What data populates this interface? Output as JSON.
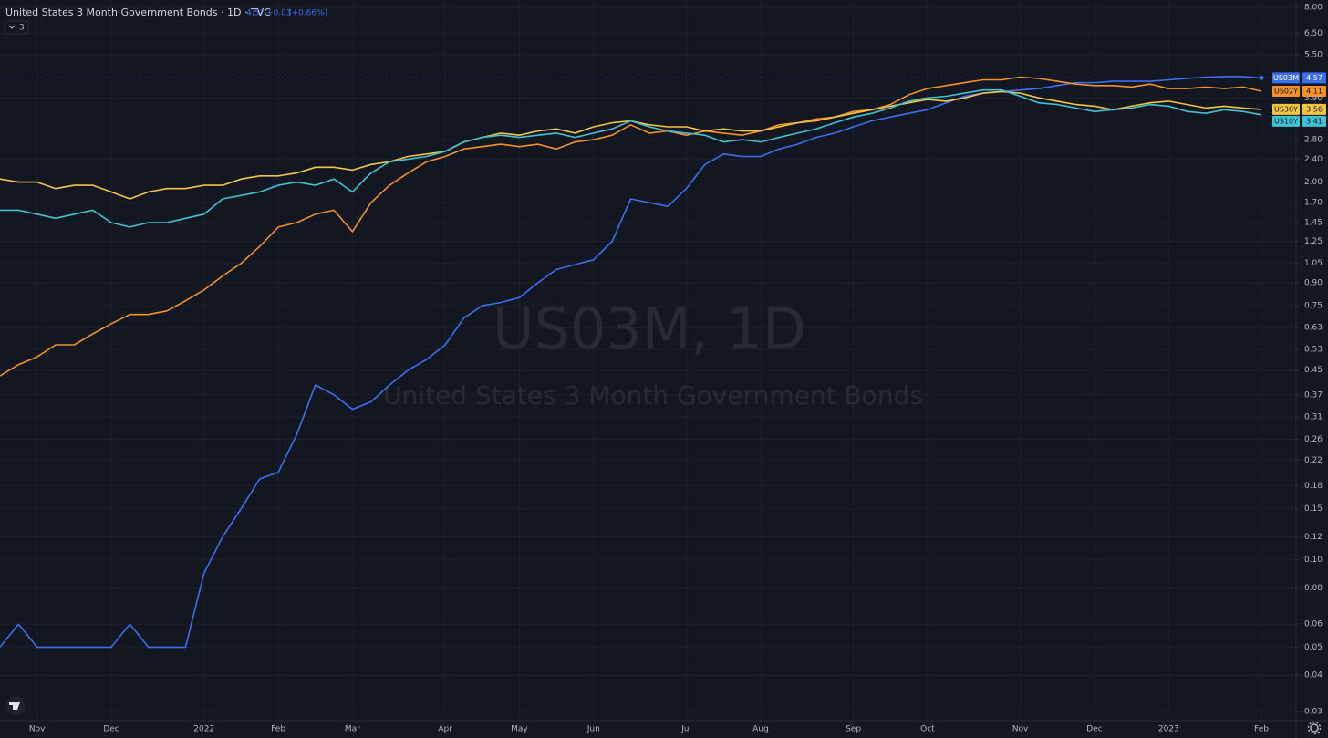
{
  "header": {
    "title": "United States 3 Month Government Bonds · 1D · TVC",
    "price": "4.57",
    "change": "+0.03",
    "change_pct": "(+0.66%)",
    "indicators": "3"
  },
  "watermark": {
    "symbol": "US03M, 1D",
    "description": "United States 3 Month Government Bonds"
  },
  "chart_data": {
    "type": "line",
    "log_scale": true,
    "grid": true,
    "categories": [
      null,
      null,
      "Nov",
      null,
      null,
      null,
      "Dec",
      null,
      null,
      null,
      null,
      "2022",
      null,
      null,
      null,
      "Feb",
      null,
      null,
      null,
      "Mar",
      null,
      null,
      null,
      null,
      "Apr",
      null,
      null,
      null,
      "May",
      null,
      null,
      null,
      "Jun",
      null,
      null,
      null,
      null,
      "Jul",
      null,
      null,
      null,
      "Aug",
      null,
      null,
      null,
      null,
      "Sep",
      null,
      null,
      null,
      "Oct",
      null,
      null,
      null,
      null,
      "Nov",
      null,
      null,
      null,
      "Dec",
      null,
      null,
      null,
      "2023",
      null,
      null,
      null,
      null,
      "Feb"
    ],
    "series": [
      {
        "name": "US03M",
        "color": "#3a6ff0",
        "values": [
          0.05,
          0.06,
          0.05,
          0.05,
          0.05,
          0.05,
          0.05,
          0.06,
          0.05,
          0.05,
          0.05,
          0.09,
          0.12,
          0.15,
          0.19,
          0.2,
          0.27,
          0.4,
          0.37,
          0.33,
          0.35,
          0.4,
          0.45,
          0.49,
          0.55,
          0.68,
          0.75,
          0.77,
          0.8,
          0.9,
          1.0,
          1.04,
          1.08,
          1.25,
          1.75,
          1.7,
          1.65,
          1.9,
          2.3,
          2.5,
          2.45,
          2.45,
          2.6,
          2.7,
          2.85,
          2.95,
          3.1,
          3.25,
          3.35,
          3.45,
          3.55,
          3.75,
          3.95,
          4.05,
          4.1,
          4.15,
          4.2,
          4.3,
          4.4,
          4.4,
          4.45,
          4.45,
          4.45,
          4.5,
          4.55,
          4.6,
          4.62,
          4.62,
          4.57
        ]
      },
      {
        "name": "US02Y",
        "color": "#f5902a",
        "values": [
          0.43,
          0.47,
          0.5,
          0.55,
          0.55,
          0.6,
          0.65,
          0.7,
          0.7,
          0.72,
          0.78,
          0.85,
          0.95,
          1.05,
          1.2,
          1.4,
          1.45,
          1.55,
          1.6,
          1.35,
          1.7,
          1.95,
          2.15,
          2.35,
          2.45,
          2.6,
          2.65,
          2.7,
          2.65,
          2.7,
          2.6,
          2.75,
          2.8,
          2.9,
          3.15,
          2.95,
          3.0,
          2.9,
          3.0,
          2.95,
          2.9,
          3.0,
          3.15,
          3.2,
          3.3,
          3.35,
          3.5,
          3.55,
          3.7,
          4.0,
          4.2,
          4.3,
          4.4,
          4.5,
          4.5,
          4.6,
          4.55,
          4.45,
          4.35,
          4.3,
          4.3,
          4.25,
          4.35,
          4.2,
          4.2,
          4.25,
          4.2,
          4.25,
          4.11
        ]
      },
      {
        "name": "US30Y",
        "color": "#f4c542",
        "values": [
          2.05,
          2.0,
          2.0,
          1.9,
          1.95,
          1.95,
          1.85,
          1.75,
          1.85,
          1.9,
          1.9,
          1.95,
          1.95,
          2.05,
          2.1,
          2.1,
          2.15,
          2.25,
          2.25,
          2.2,
          2.3,
          2.35,
          2.45,
          2.5,
          2.55,
          2.75,
          2.85,
          2.95,
          2.9,
          3.0,
          3.05,
          2.95,
          3.1,
          3.2,
          3.25,
          3.15,
          3.1,
          3.1,
          3.0,
          3.05,
          3.0,
          3.0,
          3.1,
          3.2,
          3.25,
          3.35,
          3.45,
          3.55,
          3.65,
          3.75,
          3.85,
          3.8,
          3.9,
          4.05,
          4.1,
          4.05,
          3.9,
          3.8,
          3.7,
          3.65,
          3.55,
          3.65,
          3.75,
          3.8,
          3.7,
          3.6,
          3.65,
          3.6,
          3.56
        ]
      },
      {
        "name": "US10Y",
        "color": "#3fc3d2",
        "values": [
          1.6,
          1.6,
          1.55,
          1.5,
          1.55,
          1.6,
          1.45,
          1.4,
          1.45,
          1.45,
          1.5,
          1.55,
          1.75,
          1.8,
          1.85,
          1.95,
          2.0,
          1.95,
          2.05,
          1.85,
          2.15,
          2.35,
          2.4,
          2.45,
          2.55,
          2.75,
          2.85,
          2.9,
          2.85,
          2.9,
          2.95,
          2.85,
          2.95,
          3.05,
          3.25,
          3.1,
          3.0,
          2.95,
          2.9,
          2.75,
          2.8,
          2.75,
          2.85,
          2.95,
          3.05,
          3.2,
          3.35,
          3.45,
          3.6,
          3.8,
          3.9,
          3.95,
          4.05,
          4.15,
          4.15,
          3.95,
          3.75,
          3.7,
          3.6,
          3.5,
          3.55,
          3.6,
          3.7,
          3.65,
          3.5,
          3.45,
          3.55,
          3.5,
          3.41
        ]
      }
    ],
    "ylim": [
      0.03,
      8
    ],
    "yticks": [
      {
        "value": 8,
        "label": "8.00"
      },
      {
        "value": 6.5,
        "label": "6.50"
      },
      {
        "value": 5.5,
        "label": "5.50"
      },
      {
        "value": 3.9,
        "label": "3.90"
      },
      {
        "value": 2.8,
        "label": "2.80"
      },
      {
        "value": 2.4,
        "label": "2.40"
      },
      {
        "value": 2,
        "label": "2.00"
      },
      {
        "value": 1.7,
        "label": "1.70"
      },
      1.45,
      1.25,
      1.05,
      {
        "value": 0.9,
        "label": "0.90"
      },
      0.75,
      0.63,
      0.53,
      0.45,
      0.37,
      0.31,
      0.26,
      0.22,
      0.18,
      0.15,
      0.12,
      {
        "value": 0.1,
        "label": "0.10"
      },
      0.08,
      0.06,
      0.05,
      0.04,
      0.03
    ]
  }
}
